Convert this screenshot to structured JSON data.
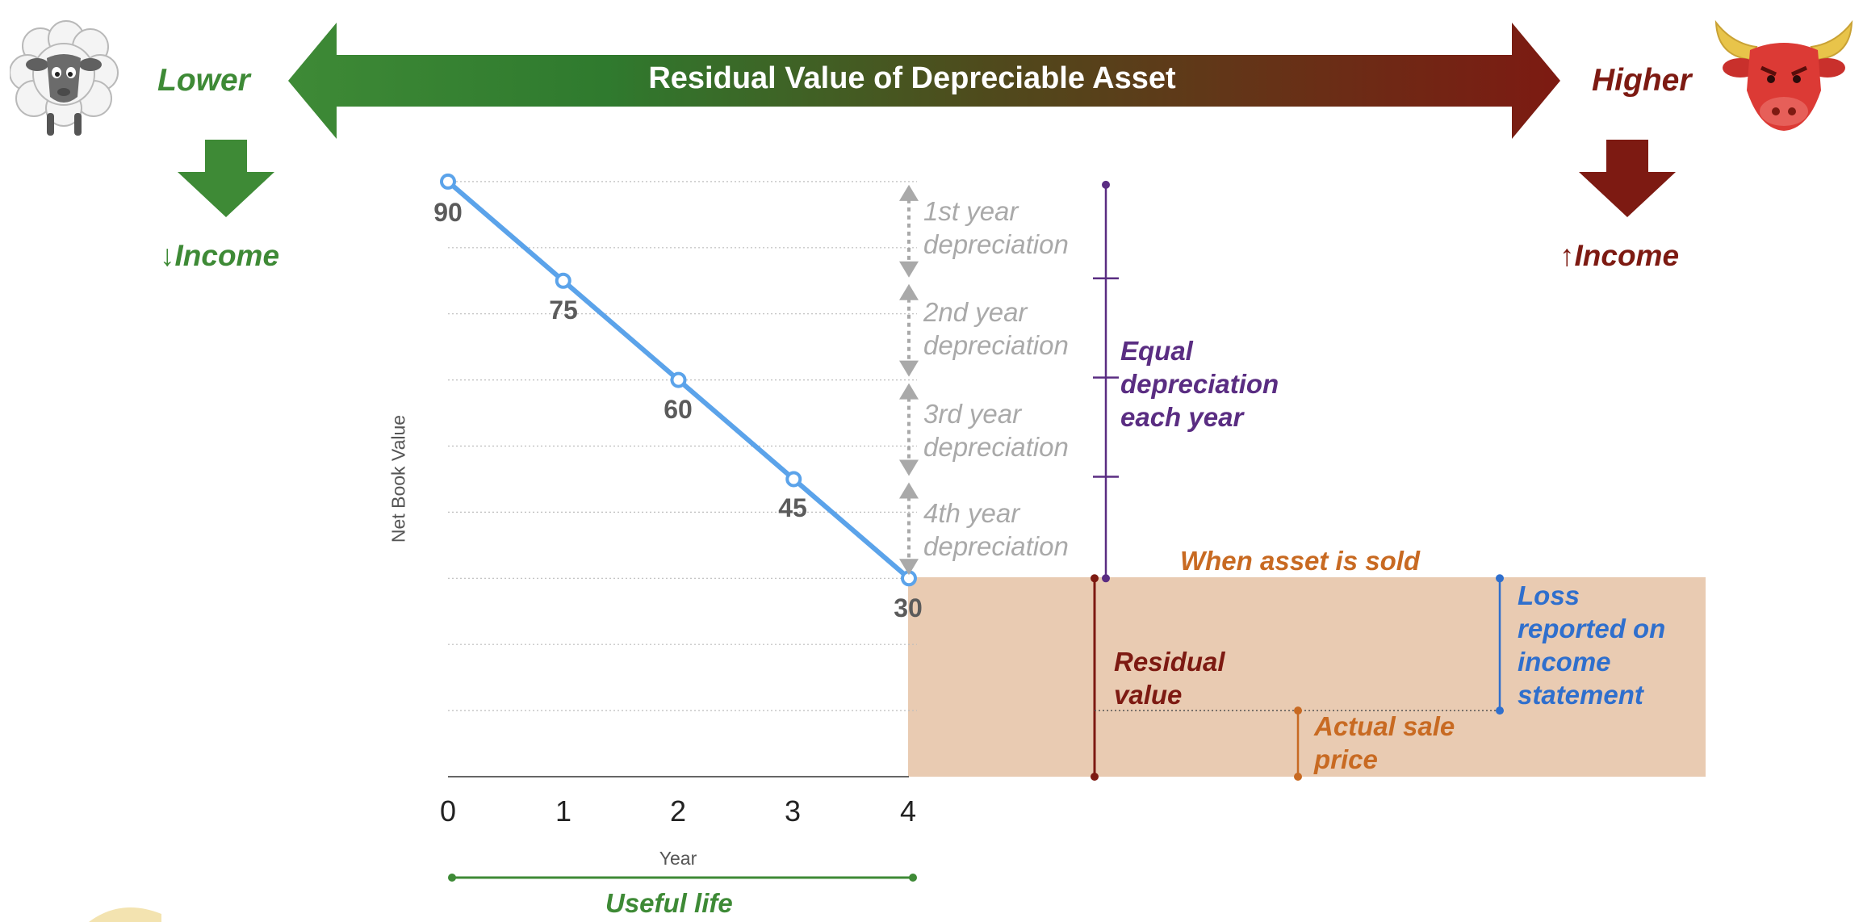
{
  "header": {
    "title": "Residual Value of Depreciable Asset",
    "left_label": "Lower",
    "right_label": "Higher",
    "left_income": "↓Income",
    "right_income": "↑Income",
    "left_icon": "sheep-icon",
    "right_icon": "bull-icon",
    "left_color": "#3e8a36",
    "right_color": "#7d1a12"
  },
  "chart_data": {
    "type": "line",
    "ylabel": "Net Book Value",
    "xlabel": "Year",
    "x": [
      0,
      1,
      2,
      3,
      4
    ],
    "values": [
      90,
      75,
      60,
      45,
      30
    ],
    "ylim": [
      0,
      90
    ],
    "grid": true,
    "line_color": "#5ba3ea",
    "tick_labels": [
      "0",
      "1",
      "2",
      "3",
      "4"
    ],
    "data_labels": [
      "90",
      "75",
      "60",
      "45",
      "30"
    ]
  },
  "annotations": {
    "depreciation": [
      "1st year\ndepreciation",
      "2nd year\ndepreciation",
      "3rd year\ndepreciation",
      "4th year\ndepreciation"
    ],
    "equal": "Equal\ndepreciation\neach year",
    "sold": "When asset is sold",
    "residual": "Residual\nvalue",
    "loss": "Loss\nreported on\nincome\nstatement",
    "sale_price": "Actual sale\nprice",
    "useful_life": "Useful life",
    "sale_price_value": 10
  },
  "colors": {
    "purple": "#5a2d82",
    "orange": "#c86a22",
    "blue": "#2f6fcd",
    "dark_red": "#7d1a12",
    "green": "#3e8a36",
    "sold_fill": "#e9cbb2"
  }
}
